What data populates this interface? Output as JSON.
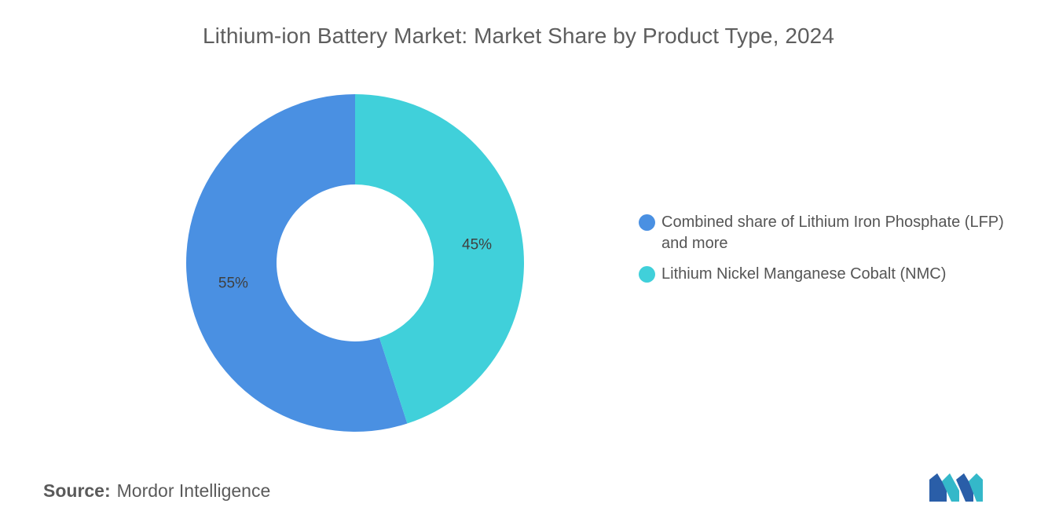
{
  "chart_data": {
    "type": "pie",
    "variant": "donut",
    "title": "Lithium-ion Battery Market: Market Share by Product Type, 2024",
    "series": [
      {
        "name": "Combined share of Lithium Iron Phosphate (LFP) and more",
        "value": 55,
        "label": "55%",
        "color": "#4a90e2"
      },
      {
        "name": "Lithium Nickel Manganese Cobalt (NMC)",
        "value": 45,
        "label": "45%",
        "color": "#40d0da"
      }
    ],
    "legend_position": "right"
  },
  "source": {
    "label": "Source:",
    "text": "Mordor Intelligence"
  },
  "logo": {
    "icon": "mordor-intelligence-logo",
    "colors": [
      "#2a5ea8",
      "#34b8c9"
    ]
  }
}
